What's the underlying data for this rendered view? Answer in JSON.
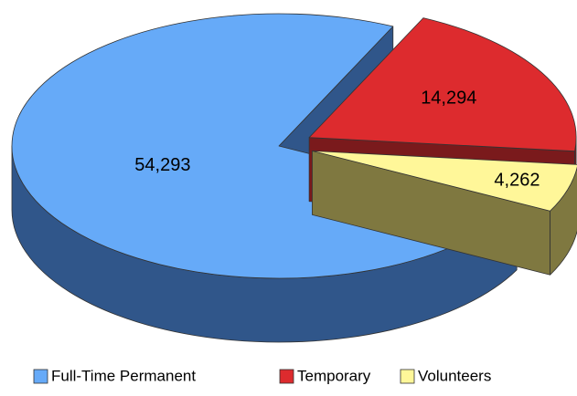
{
  "chart_data": {
    "type": "pie3d",
    "categories": [
      "Full-Time Permanent",
      "Temporary",
      "Volunteers"
    ],
    "values": [
      54293,
      14294,
      4262
    ],
    "value_labels": [
      "54,293",
      "14,294",
      "4,262"
    ],
    "colors": [
      "#66aaf8",
      "#dd2b2e",
      "#fff799"
    ],
    "side_colors": [
      "#30568a",
      "#7a1a1c",
      "#7f7840"
    ],
    "legend": "bottom"
  }
}
